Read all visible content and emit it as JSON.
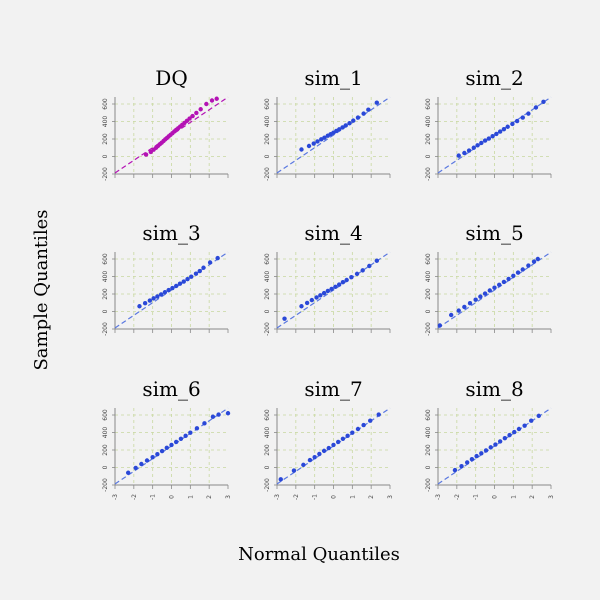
{
  "xlabel": "Normal Quantiles",
  "ylabel": "Sample Quantiles",
  "x_ticks": [
    "-3",
    "-2",
    "-1",
    "0",
    "1",
    "2",
    "3"
  ],
  "y_ticks": [
    "-200",
    "0",
    "200",
    "400",
    "600"
  ],
  "colors": {
    "observed": "#b412b4",
    "simulated": "#2a48d8",
    "simulated_line": "#5a78e0",
    "grid": "#c8d8a0",
    "background": "#f2f2f2"
  },
  "chart_data": {
    "type": "scatter",
    "grid": true,
    "xlim": [
      -3,
      3
    ],
    "ylim": [
      -200,
      680
    ],
    "panels": [
      {
        "title": "DQ",
        "series": "observed",
        "points": [
          [
            -1.35,
            22
          ],
          [
            -1.1,
            52
          ],
          [
            -0.95,
            78
          ],
          [
            -0.82,
            100
          ],
          [
            -0.72,
            120
          ],
          [
            -0.62,
            140
          ],
          [
            -0.52,
            158
          ],
          [
            -0.42,
            178
          ],
          [
            -0.33,
            196
          ],
          [
            -0.24,
            212
          ],
          [
            -0.15,
            230
          ],
          [
            -0.05,
            248
          ],
          [
            0.05,
            266
          ],
          [
            0.15,
            286
          ],
          [
            0.25,
            305
          ],
          [
            0.35,
            322
          ],
          [
            0.46,
            342
          ],
          [
            0.57,
            362
          ],
          [
            0.69,
            384
          ],
          [
            0.82,
            408
          ],
          [
            0.96,
            434
          ],
          [
            1.12,
            462
          ],
          [
            1.32,
            498
          ],
          [
            1.55,
            540
          ],
          [
            1.85,
            600
          ],
          [
            2.15,
            640
          ],
          [
            2.4,
            660
          ]
        ],
        "line": [
          [
            -3,
            -188
          ],
          [
            3,
            678
          ]
        ]
      },
      {
        "title": "sim_1",
        "series": "simulated",
        "points": [
          [
            -1.7,
            80
          ],
          [
            -1.3,
            120
          ],
          [
            -1.05,
            148
          ],
          [
            -0.85,
            172
          ],
          [
            -0.65,
            196
          ],
          [
            -0.48,
            215
          ],
          [
            -0.3,
            238
          ],
          [
            -0.15,
            255
          ],
          [
            0.0,
            272
          ],
          [
            0.15,
            292
          ],
          [
            0.3,
            310
          ],
          [
            0.48,
            332
          ],
          [
            0.65,
            355
          ],
          [
            0.85,
            380
          ],
          [
            1.05,
            410
          ],
          [
            1.3,
            445
          ],
          [
            1.6,
            490
          ],
          [
            1.85,
            535
          ],
          [
            2.3,
            615
          ]
        ],
        "line": [
          [
            -3,
            -188
          ],
          [
            3,
            678
          ]
        ]
      },
      {
        "title": "sim_2",
        "series": "simulated",
        "points": [
          [
            -1.9,
            10
          ],
          [
            -1.6,
            40
          ],
          [
            -1.35,
            68
          ],
          [
            -1.1,
            100
          ],
          [
            -0.9,
            128
          ],
          [
            -0.7,
            155
          ],
          [
            -0.5,
            182
          ],
          [
            -0.3,
            205
          ],
          [
            -0.1,
            232
          ],
          [
            0.1,
            258
          ],
          [
            0.3,
            285
          ],
          [
            0.5,
            312
          ],
          [
            0.7,
            340
          ],
          [
            0.95,
            372
          ],
          [
            1.2,
            405
          ],
          [
            1.5,
            445
          ],
          [
            1.8,
            490
          ],
          [
            2.2,
            560
          ],
          [
            2.6,
            625
          ]
        ],
        "line": [
          [
            -3,
            -188
          ],
          [
            3,
            678
          ]
        ]
      },
      {
        "title": "sim_3",
        "series": "simulated",
        "points": [
          [
            -1.7,
            60
          ],
          [
            -1.4,
            95
          ],
          [
            -1.15,
            125
          ],
          [
            -0.95,
            150
          ],
          [
            -0.75,
            172
          ],
          [
            -0.55,
            195
          ],
          [
            -0.35,
            220
          ],
          [
            -0.15,
            245
          ],
          [
            0.05,
            268
          ],
          [
            0.25,
            292
          ],
          [
            0.45,
            318
          ],
          [
            0.65,
            342
          ],
          [
            0.85,
            370
          ],
          [
            1.05,
            398
          ],
          [
            1.3,
            432
          ],
          [
            1.5,
            462
          ],
          [
            1.7,
            500
          ],
          [
            2.05,
            560
          ],
          [
            2.45,
            610
          ]
        ],
        "line": [
          [
            -3,
            -188
          ],
          [
            3,
            678
          ]
        ]
      },
      {
        "title": "sim_4",
        "series": "simulated",
        "points": [
          [
            -2.6,
            -82
          ],
          [
            -1.7,
            60
          ],
          [
            -1.4,
            98
          ],
          [
            -1.15,
            130
          ],
          [
            -0.9,
            160
          ],
          [
            -0.7,
            185
          ],
          [
            -0.5,
            210
          ],
          [
            -0.3,
            235
          ],
          [
            -0.1,
            258
          ],
          [
            0.1,
            282
          ],
          [
            0.3,
            308
          ],
          [
            0.5,
            335
          ],
          [
            0.7,
            360
          ],
          [
            0.95,
            392
          ],
          [
            1.25,
            430
          ],
          [
            1.55,
            470
          ],
          [
            1.9,
            520
          ],
          [
            2.3,
            580
          ]
        ],
        "line": [
          [
            -3,
            -188
          ],
          [
            3,
            678
          ]
        ]
      },
      {
        "title": "sim_5",
        "series": "simulated",
        "points": [
          [
            -2.9,
            -160
          ],
          [
            -2.3,
            -40
          ],
          [
            -1.9,
            10
          ],
          [
            -1.6,
            52
          ],
          [
            -1.3,
            95
          ],
          [
            -1.0,
            135
          ],
          [
            -0.75,
            170
          ],
          [
            -0.5,
            205
          ],
          [
            -0.25,
            240
          ],
          [
            0.0,
            272
          ],
          [
            0.25,
            305
          ],
          [
            0.5,
            338
          ],
          [
            0.75,
            372
          ],
          [
            1.0,
            408
          ],
          [
            1.25,
            445
          ],
          [
            1.5,
            480
          ],
          [
            1.8,
            525
          ],
          [
            2.1,
            570
          ],
          [
            2.3,
            600
          ]
        ],
        "line": [
          [
            -3,
            -188
          ],
          [
            3,
            678
          ]
        ]
      },
      {
        "title": "sim_6",
        "series": "simulated",
        "points": [
          [
            -2.3,
            -60
          ],
          [
            -1.9,
            -5
          ],
          [
            -1.6,
            40
          ],
          [
            -1.3,
            80
          ],
          [
            -1.0,
            118
          ],
          [
            -0.75,
            152
          ],
          [
            -0.5,
            188
          ],
          [
            -0.25,
            225
          ],
          [
            0.0,
            258
          ],
          [
            0.25,
            292
          ],
          [
            0.5,
            328
          ],
          [
            0.75,
            362
          ],
          [
            1.0,
            398
          ],
          [
            1.35,
            448
          ],
          [
            1.75,
            505
          ],
          [
            2.2,
            580
          ],
          [
            2.5,
            605
          ],
          [
            3.0,
            620
          ]
        ],
        "line": [
          [
            -3,
            -188
          ],
          [
            3,
            678
          ]
        ]
      },
      {
        "title": "sim_7",
        "series": "simulated",
        "points": [
          [
            -2.8,
            -135
          ],
          [
            -2.1,
            -35
          ],
          [
            -1.6,
            30
          ],
          [
            -1.25,
            85
          ],
          [
            -1.0,
            118
          ],
          [
            -0.75,
            155
          ],
          [
            -0.5,
            190
          ],
          [
            -0.25,
            222
          ],
          [
            0.0,
            258
          ],
          [
            0.25,
            292
          ],
          [
            0.5,
            328
          ],
          [
            0.75,
            362
          ],
          [
            1.0,
            398
          ],
          [
            1.3,
            440
          ],
          [
            1.6,
            485
          ],
          [
            1.95,
            535
          ],
          [
            2.4,
            605
          ]
        ],
        "line": [
          [
            -3,
            -188
          ],
          [
            3,
            678
          ]
        ]
      },
      {
        "title": "sim_8",
        "series": "simulated",
        "points": [
          [
            -2.1,
            -30
          ],
          [
            -1.75,
            15
          ],
          [
            -1.45,
            58
          ],
          [
            -1.2,
            95
          ],
          [
            -0.95,
            130
          ],
          [
            -0.7,
            162
          ],
          [
            -0.45,
            195
          ],
          [
            -0.2,
            230
          ],
          [
            0.05,
            262
          ],
          [
            0.3,
            298
          ],
          [
            0.55,
            335
          ],
          [
            0.8,
            370
          ],
          [
            1.05,
            405
          ],
          [
            1.3,
            440
          ],
          [
            1.6,
            478
          ],
          [
            1.95,
            535
          ],
          [
            2.35,
            590
          ]
        ],
        "line": [
          [
            -3,
            -188
          ],
          [
            3,
            678
          ]
        ]
      }
    ]
  }
}
